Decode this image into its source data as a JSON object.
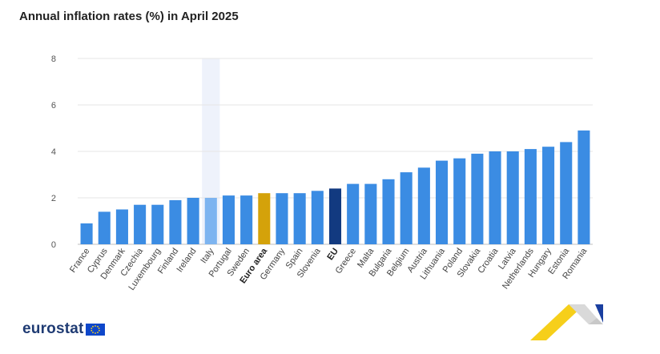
{
  "title": "Annual inflation rates (%) in April 2025",
  "brand": {
    "name": "eurostat",
    "flag_icon": "eu-flag-icon"
  },
  "colors": {
    "default": "#3b8ce3",
    "highlight_light": "#7db4f0",
    "euro_area": "#d4a20a",
    "eu": "#123a80",
    "grid": "#e6e6e6",
    "axis": "#bfbfbf"
  },
  "chart_data": {
    "type": "bar",
    "title": "Annual inflation rates (%) in April 2025",
    "xlabel": "",
    "ylabel": "",
    "ylim": [
      0,
      8
    ],
    "yticks": [
      0,
      2,
      4,
      6,
      8
    ],
    "grid": true,
    "highlight_category": "Italy",
    "categories": [
      "France",
      "Cyprus",
      "Denmark",
      "Czechia",
      "Luxembourg",
      "Finland",
      "Ireland",
      "Italy",
      "Portugal",
      "Sweden",
      "Euro area",
      "Germany",
      "Spain",
      "Slovenia",
      "EU",
      "Greece",
      "Malta",
      "Bulgaria",
      "Belgium",
      "Austria",
      "Lithuania",
      "Poland",
      "Slovakia",
      "Croatia",
      "Latvia",
      "Netherlands",
      "Hungary",
      "Estonia",
      "Romania"
    ],
    "values": [
      0.9,
      1.4,
      1.5,
      1.7,
      1.7,
      1.9,
      2.0,
      2.0,
      2.1,
      2.1,
      2.2,
      2.2,
      2.2,
      2.3,
      2.4,
      2.6,
      2.6,
      2.8,
      3.1,
      3.3,
      3.6,
      3.7,
      3.9,
      4.0,
      4.0,
      4.1,
      4.2,
      4.4,
      4.9
    ],
    "bold_categories": [
      "Euro area",
      "EU"
    ]
  }
}
